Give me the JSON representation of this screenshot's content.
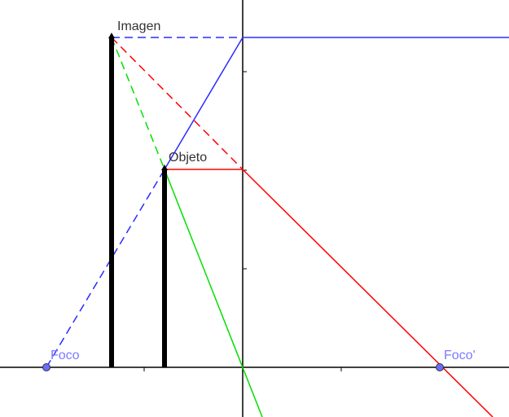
{
  "labels": {
    "imagen": "Imagen",
    "objeto": "Objeto",
    "foco": "Foco",
    "foco_prime": "Foco'"
  },
  "colors": {
    "axis": "#000000",
    "blue_ray": "#2b2bff",
    "red_ray": "#ff0000",
    "green_ray": "#00e000",
    "focus_point": "#6b6bff",
    "focus_label": "#7b7bff",
    "text": "#333333"
  }
}
